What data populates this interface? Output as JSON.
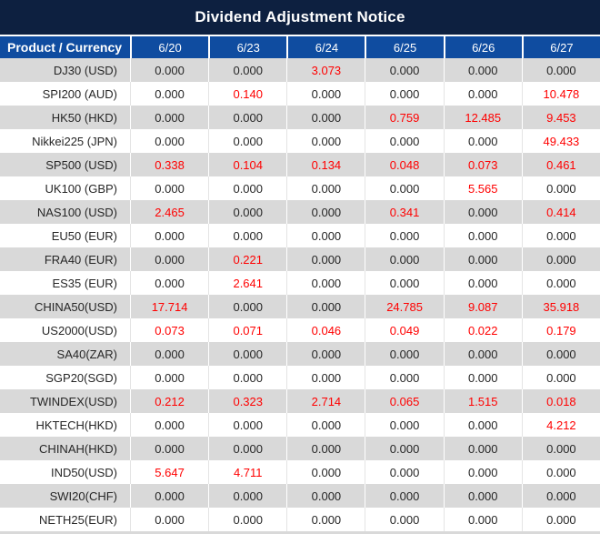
{
  "title": "Dividend Adjustment Notice",
  "table": {
    "product_header": "Product / Currency",
    "date_headers": [
      "6/20",
      "6/23",
      "6/24",
      "6/25",
      "6/26",
      "6/27"
    ],
    "zero_value": "0.000",
    "rows": [
      {
        "product": "DJ30 (USD)",
        "values": [
          "0.000",
          "0.000",
          "3.073",
          "0.000",
          "0.000",
          "0.000"
        ]
      },
      {
        "product": "SPI200 (AUD)",
        "values": [
          "0.000",
          "0.140",
          "0.000",
          "0.000",
          "0.000",
          "10.478"
        ]
      },
      {
        "product": "HK50 (HKD)",
        "values": [
          "0.000",
          "0.000",
          "0.000",
          "0.759",
          "12.485",
          "9.453"
        ]
      },
      {
        "product": "Nikkei225 (JPN)",
        "values": [
          "0.000",
          "0.000",
          "0.000",
          "0.000",
          "0.000",
          "49.433"
        ]
      },
      {
        "product": "SP500 (USD)",
        "values": [
          "0.338",
          "0.104",
          "0.134",
          "0.048",
          "0.073",
          "0.461"
        ]
      },
      {
        "product": "UK100 (GBP)",
        "values": [
          "0.000",
          "0.000",
          "0.000",
          "0.000",
          "5.565",
          "0.000"
        ]
      },
      {
        "product": "NAS100 (USD)",
        "values": [
          "2.465",
          "0.000",
          "0.000",
          "0.341",
          "0.000",
          "0.414"
        ]
      },
      {
        "product": "EU50 (EUR)",
        "values": [
          "0.000",
          "0.000",
          "0.000",
          "0.000",
          "0.000",
          "0.000"
        ]
      },
      {
        "product": "FRA40 (EUR)",
        "values": [
          "0.000",
          "0.221",
          "0.000",
          "0.000",
          "0.000",
          "0.000"
        ]
      },
      {
        "product": "ES35 (EUR)",
        "values": [
          "0.000",
          "2.641",
          "0.000",
          "0.000",
          "0.000",
          "0.000"
        ]
      },
      {
        "product": "CHINA50(USD)",
        "values": [
          "17.714",
          "0.000",
          "0.000",
          "24.785",
          "9.087",
          "35.918"
        ]
      },
      {
        "product": "US2000(USD)",
        "values": [
          "0.073",
          "0.071",
          "0.046",
          "0.049",
          "0.022",
          "0.179"
        ]
      },
      {
        "product": "SA40(ZAR)",
        "values": [
          "0.000",
          "0.000",
          "0.000",
          "0.000",
          "0.000",
          "0.000"
        ]
      },
      {
        "product": "SGP20(SGD)",
        "values": [
          "0.000",
          "0.000",
          "0.000",
          "0.000",
          "0.000",
          "0.000"
        ]
      },
      {
        "product": "TWINDEX(USD)",
        "values": [
          "0.212",
          "0.323",
          "2.714",
          "0.065",
          "1.515",
          "0.018"
        ]
      },
      {
        "product": "HKTECH(HKD)",
        "values": [
          "0.000",
          "0.000",
          "0.000",
          "0.000",
          "0.000",
          "4.212"
        ]
      },
      {
        "product": "CHINAH(HKD)",
        "values": [
          "0.000",
          "0.000",
          "0.000",
          "0.000",
          "0.000",
          "0.000"
        ]
      },
      {
        "product": "IND50(USD)",
        "values": [
          "5.647",
          "4.711",
          "0.000",
          "0.000",
          "0.000",
          "0.000"
        ]
      },
      {
        "product": "SWI20(CHF)",
        "values": [
          "0.000",
          "0.000",
          "0.000",
          "0.000",
          "0.000",
          "0.000"
        ]
      },
      {
        "product": "NETH25(EUR)",
        "values": [
          "0.000",
          "0.000",
          "0.000",
          "0.000",
          "0.000",
          "0.000"
        ]
      }
    ]
  },
  "colors": {
    "title_bg": "#0d2040",
    "header_bg": "#0f4ca0",
    "stripe_bg": "#d9d9d9",
    "row_bg": "#ffffff",
    "value_text": "#262626",
    "nonzero_value_text": "#ff0000",
    "header_text": "#ffffff"
  }
}
